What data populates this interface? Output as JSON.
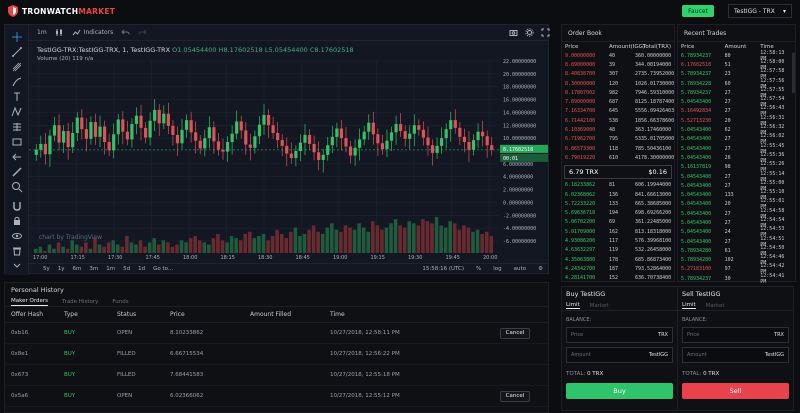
{
  "header": {
    "logo_part1": "TRONWATCH",
    "logo_part2": "MARKET",
    "faucet_label": "Faucet",
    "pair": "TestIGG - TRX"
  },
  "chart": {
    "interval": "1m",
    "indicators_label": "Indicators",
    "legend_symbol": "TestIGG-TRX:TestIGG-TRX, 1, TestIGG-TRX",
    "legend_o": "O1.05454400",
    "legend_h": "H8.17602518",
    "legend_l": "L5.05454400",
    "legend_c": "C8.17602518",
    "volume_label": "Volume (20)",
    "volume_val": "119  n/a",
    "watermark": "chart by TradingView",
    "price_ticks": [
      "22.00000000",
      "20.00000000",
      "18.00000000",
      "16.00000000",
      "14.00000000",
      "12.00000000",
      "10.00000000",
      "8.00000000",
      "6.00000000",
      "4.00000000",
      "2.00000000",
      "0.00000000",
      "-2.00000000",
      "-4.00000000",
      "-6.00000000"
    ],
    "last_price_tag": "8.17602518",
    "last_price_tag2": "00:01",
    "time_ticks": [
      "17:00",
      "17:15",
      "17:30",
      "17:45",
      "18:00",
      "18:15",
      "18:30",
      "18:45",
      "19:00",
      "19:15",
      "19:30",
      "19:45",
      "20:00"
    ],
    "ranges": [
      "5y",
      "1y",
      "6m",
      "3m",
      "1m",
      "5d",
      "1d",
      "Go to..."
    ],
    "clock": "15:58:16 (UTC)",
    "pct": "%",
    "log": "log",
    "auto": "auto"
  },
  "chart_data": {
    "type": "candlestick",
    "title": "TestIGG-TRX:TestIGG-TRX, 1, TestIGG-TRX",
    "xlabel": "",
    "ylabel": "",
    "ylim": [
      -6,
      22
    ],
    "x_ticks": [
      "17:00",
      "17:15",
      "17:30",
      "17:45",
      "18:00",
      "18:15",
      "18:30",
      "18:45",
      "19:00",
      "19:15",
      "19:30",
      "19:45",
      "20:00"
    ],
    "candles_close": [
      8.2,
      9.1,
      7.5,
      10.4,
      12.0,
      9.3,
      11.1,
      8.6,
      10.8,
      13.2,
      11.4,
      9.9,
      12.5,
      10.2,
      11.8,
      9.4,
      8.1,
      10.6,
      12.9,
      11.0,
      9.8,
      12.2,
      13.5,
      11.6,
      10.1,
      12.7,
      14.4,
      12.3,
      13.8,
      11.9,
      10.5,
      9.2,
      11.3,
      12.8,
      10.9,
      9.6,
      8.4,
      10.0,
      11.7,
      9.5,
      8.2,
      7.9,
      9.4,
      10.7,
      12.6,
      11.2,
      9.0,
      8.5,
      10.3,
      12.1,
      13.6,
      12.0,
      10.8,
      9.7,
      8.8,
      7.6,
      6.9,
      8.0,
      9.3,
      10.5,
      9.1,
      7.8,
      6.6,
      7.4,
      8.9,
      10.2,
      11.5,
      10.0,
      8.7,
      7.3,
      8.5,
      9.8,
      11.0,
      12.4,
      10.6,
      9.2,
      8.3,
      9.6,
      10.9,
      12.2,
      11.1,
      9.9,
      10.7,
      12.0,
      11.3,
      10.1,
      8.9,
      7.7,
      8.8,
      10.0,
      11.4,
      12.8,
      11.6,
      10.2,
      9.4,
      8.2,
      9.7,
      11.0,
      10.3,
      8.9,
      8.17602518
    ],
    "volume": [
      2,
      3,
      1,
      4,
      2,
      5,
      3,
      2,
      6,
      4,
      3,
      5,
      2,
      7,
      4,
      3,
      5,
      6,
      4,
      3,
      8,
      5,
      4,
      6,
      3,
      5,
      7,
      4,
      6,
      5,
      3,
      4,
      6,
      5,
      7,
      8,
      6,
      5,
      4,
      7,
      9,
      6,
      5,
      8,
      7,
      6,
      9,
      10,
      7,
      8,
      9,
      6,
      8,
      11,
      9,
      7,
      10,
      12,
      8,
      9,
      11,
      13,
      10,
      9,
      12,
      14,
      11,
      10,
      13,
      12,
      11,
      14,
      12,
      10,
      15,
      13,
      11,
      12,
      14,
      16,
      13,
      12,
      15,
      14,
      13,
      16,
      15,
      14,
      17,
      13,
      12,
      15,
      14,
      11,
      13,
      12,
      10,
      11,
      9,
      10,
      8
    ]
  },
  "order_book": {
    "title": "Order Book",
    "headers": [
      "Price",
      "Amount(IGG)",
      "Total(TRX)"
    ],
    "asks": [
      [
        "9.00000000",
        "40",
        "360.00000000"
      ],
      [
        "8.89000000",
        "39",
        "344.00194000"
      ],
      [
        "8.40838700",
        "307",
        "2735.73952000"
      ],
      [
        "8.30000000",
        "120",
        "1026.01730000"
      ],
      [
        "8.17807002",
        "982",
        "7946.59310000"
      ],
      [
        "7.89000000",
        "687",
        "8125.18787400"
      ],
      [
        "7.16334700",
        "645",
        "5556.09426403"
      ],
      [
        "6.71442100",
        "538",
        "1856.66378600"
      ],
      [
        "6.10369000",
        "48",
        "363.17460000"
      ],
      [
        "6.71962700",
        "795",
        "5335.01705000"
      ],
      [
        "6.86573300",
        "118",
        "785.50436100"
      ],
      [
        "6.79019220",
        "610",
        "4178.30000000"
      ]
    ],
    "mid_price": "6.79 TRX",
    "mid_spread": "$0.16",
    "bids": [
      [
        "6.18233862",
        "81",
        "606.19944000"
      ],
      [
        "6.02368062",
        "136",
        "841.66613000"
      ],
      [
        "5.72233220",
        "133",
        "665.38685000"
      ],
      [
        "5.69636718",
        "194",
        "698.69266200"
      ],
      [
        "5.06702200",
        "69",
        "361.22485000"
      ],
      [
        "5.01709000",
        "162",
        "813.18318000"
      ],
      [
        "4.93086200",
        "117",
        "576.39968100"
      ],
      [
        "4.63632297",
        "119",
        "532.26458000"
      ],
      [
        "4.35063800",
        "178",
        "685.86873400"
      ],
      [
        "4.24342700",
        "187",
        "793.52864000"
      ],
      [
        "4.28141700",
        "152",
        "636.70738400"
      ]
    ]
  },
  "recent_trades": {
    "title": "Recent Trades",
    "headers": [
      "Price",
      "Amount",
      "Time"
    ],
    "rows": [
      [
        "6.78934237",
        "80",
        "12:58:13 PM",
        "g"
      ],
      [
        "6.17602518",
        "51",
        "12:58:00 PM",
        "r"
      ],
      [
        "5.78934237",
        "23",
        "12:57:58 PM",
        "g"
      ],
      [
        "5.78934228",
        "60",
        "12:57:56 PM",
        "g"
      ],
      [
        "5.78934237",
        "27",
        "12:57:55 PM",
        "g"
      ],
      [
        "5.04543400",
        "27",
        "12:57:54 PM",
        "g"
      ],
      [
        "5.16492834",
        "27",
        "12:56:43 PM",
        "r"
      ],
      [
        "5.52713230",
        "20",
        "12:56:31 PM",
        "r"
      ],
      [
        "5.04543400",
        "62",
        "12:56:32 PM",
        "g"
      ],
      [
        "5.04543400",
        "27",
        "12:56:02 PM",
        "g"
      ],
      [
        "5.04543400",
        "27",
        "12:55:45 PM",
        "g"
      ],
      [
        "5.04543400",
        "26",
        "12:55:36 PM",
        "g"
      ],
      [
        "5.16137819",
        "98",
        "12:55:26 PM",
        "g"
      ],
      [
        "5.04543400",
        "27",
        "12:55:14 PM",
        "g"
      ],
      [
        "5.04543400",
        "27",
        "12:55:00 PM",
        "g"
      ],
      [
        "5.04543400",
        "133",
        "12:55:10 PM",
        "g"
      ],
      [
        "5.04543400",
        "20",
        "12:55:01 PM",
        "g"
      ],
      [
        "5.04543400",
        "27",
        "12:54:58 PM",
        "g"
      ],
      [
        "5.04543400",
        "27",
        "12:54:54 PM",
        "g"
      ],
      [
        "5.04543400",
        "24",
        "12:54:53 PM",
        "g"
      ],
      [
        "5.04543400",
        "27",
        "12:54:51 PM",
        "g"
      ],
      [
        "5.78934280",
        "61",
        "12:54:50 PM",
        "g"
      ],
      [
        "5.78934280",
        "102",
        "12:54:46 PM",
        "g"
      ],
      [
        "5.27183100",
        "97",
        "12:54:42 PM",
        "r"
      ],
      [
        "5.78934237",
        "30",
        "12:54:41 PM",
        "g"
      ]
    ]
  },
  "history": {
    "title": "Personal History",
    "tabs": [
      "Maker Orders",
      "Trade History",
      "Funds"
    ],
    "headers": [
      "Offer Hash",
      "Type",
      "Status",
      "Price",
      "Amount Filled",
      "Time"
    ],
    "rows": [
      [
        "0xb16",
        "BUY",
        "OPEN",
        "8.10233862",
        "",
        "10/27/2018, 12:58:11 PM",
        "Cancel"
      ],
      [
        "0x8e1",
        "BUY",
        "FILLED",
        "6.66715534",
        "",
        "10/27/2018, 12:56:22 PM",
        ""
      ],
      [
        "0x673",
        "BUY",
        "FILLED",
        "7.68441583",
        "",
        "10/27/2018, 12:55:18 PM",
        ""
      ],
      [
        "0x5a6",
        "BUY",
        "OPEN",
        "6.02366062",
        "",
        "10/27/2018, 12:55:12 PM",
        "Cancel"
      ]
    ]
  },
  "buy_panel": {
    "title": "Buy TestIGG",
    "tab_active": "Limit",
    "tab_other": "Market",
    "balance_label": "BALANCE:",
    "price_placeholder": "Price",
    "price_unit": "TRX",
    "amount_placeholder": "Amount",
    "amount_unit": "TestIGG",
    "total_label": "TOTAL:",
    "total_value": "0 TRX",
    "button": "Buy"
  },
  "sell_panel": {
    "title": "Sell TestIGG",
    "tab_active": "Limit",
    "tab_other": "Market",
    "balance_label": "BALANCE:",
    "price_placeholder": "Price",
    "price_unit": "TRX",
    "amount_placeholder": "Amount",
    "amount_unit": "TestIGG",
    "total_label": "TOTAL:",
    "total_value": "0 TRX",
    "button": "Sell"
  },
  "colors": {
    "up": "#34c36a",
    "down": "#e05258",
    "accent": "#2fd36e",
    "sell": "#e8424d"
  }
}
